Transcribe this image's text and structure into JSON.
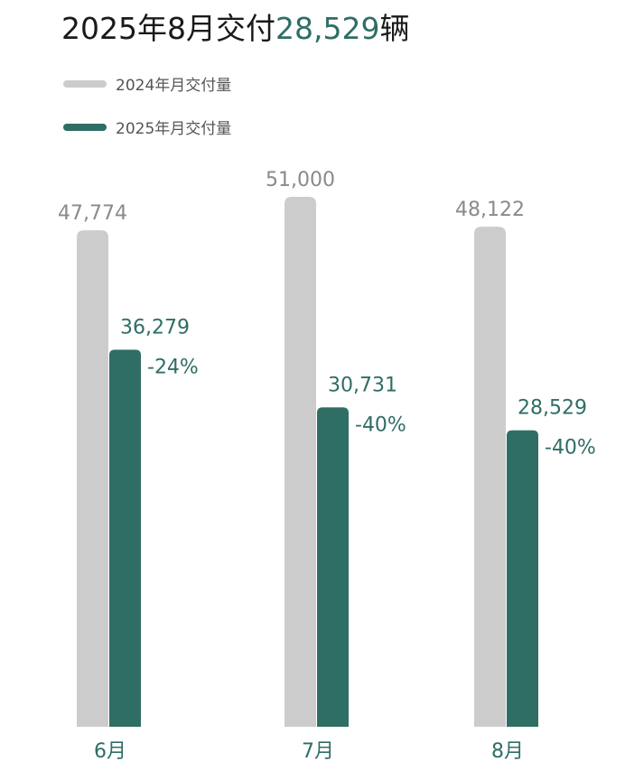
{
  "title": {
    "prefix": "2025年8月交付",
    "highlight": "28,529",
    "suffix": "辆"
  },
  "chart_data": {
    "type": "bar",
    "categories": [
      "6月",
      "7月",
      "8月"
    ],
    "series": [
      {
        "name": "2024年月交付量",
        "color": "#cccccc",
        "values": [
          47774,
          51000,
          48122
        ],
        "labels": [
          "47,774",
          "51,000",
          "48,122"
        ]
      },
      {
        "name": "2025年月交付量",
        "color": "#2f6e65",
        "values": [
          36279,
          30731,
          28529
        ],
        "labels": [
          "36,279",
          "30,731",
          "28,529"
        ],
        "change_labels": [
          "-24%",
          "-40%",
          "-40%"
        ]
      }
    ],
    "grid": false,
    "legend_position": "top-left"
  }
}
